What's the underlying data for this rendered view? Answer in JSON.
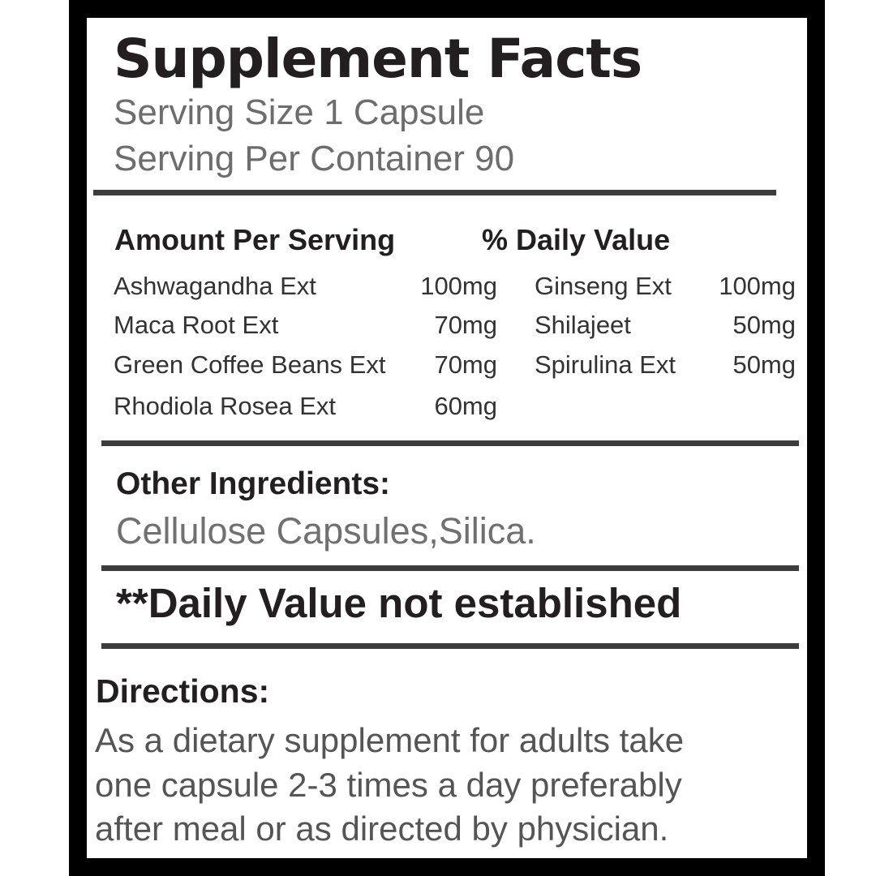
{
  "title": "Supplement Facts",
  "serving_size": "Serving Size 1 Capsule",
  "servings_per_container": "Serving Per Container 90",
  "header": {
    "amount": "Amount Per Serving",
    "daily_value": "% Daily Value"
  },
  "ingredients_left": [
    {
      "name": "Ashwagandha Ext",
      "amount": "100mg"
    },
    {
      "name": "Maca Root Ext",
      "amount": "70mg"
    },
    {
      "name": "Green Coffee Beans Ext",
      "amount": "70mg"
    },
    {
      "name": "Rhodiola Rosea Ext",
      "amount": "60mg"
    }
  ],
  "ingredients_right": [
    {
      "name": "Ginseng Ext",
      "amount": "100mg"
    },
    {
      "name": "Shilajeet",
      "amount": "50mg"
    },
    {
      "name": "Spirulina Ext",
      "amount": "50mg"
    }
  ],
  "other_ingredients": {
    "label": "Other Ingredients:",
    "value": "Cellulose Capsules,Silica."
  },
  "daily_value_note": "**Daily Value not established",
  "directions": {
    "label": "Directions:",
    "lines": [
      "As a dietary supplement for adults take",
      "one capsule 2-3 times a day preferably",
      "after meal or as directed by physician."
    ]
  }
}
